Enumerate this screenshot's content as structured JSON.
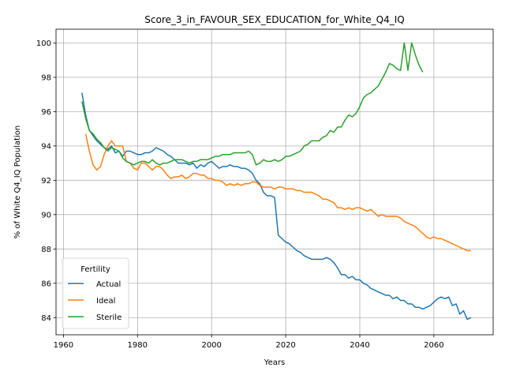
{
  "chart_data": {
    "type": "line",
    "title": "Score_3_in_FAVOUR_SEX_EDUCATION_for_White_Q4_IQ",
    "xlabel": "Years",
    "ylabel": "% of White Q4_IQ Population",
    "xlim": [
      1958,
      2076
    ],
    "ylim": [
      83.0,
      100.8
    ],
    "xticks": [
      1960,
      1980,
      2000,
      2020,
      2040,
      2060
    ],
    "yticks": [
      84,
      86,
      88,
      90,
      92,
      94,
      96,
      98,
      100
    ],
    "grid": true,
    "legend": {
      "title": "Fertility",
      "placement": "bottom-left"
    },
    "series": [
      {
        "name": "Actual",
        "color": "#1f77b4",
        "x": [
          1965,
          1966,
          1967,
          1968,
          1969,
          1970,
          1971,
          1972,
          1973,
          1974,
          1975,
          1976,
          1977,
          1978,
          1979,
          1980,
          1981,
          1982,
          1983,
          1984,
          1985,
          1986,
          1987,
          1988,
          1989,
          1990,
          1991,
          1992,
          1993,
          1994,
          1995,
          1996,
          1997,
          1998,
          1999,
          2000,
          2001,
          2002,
          2003,
          2004,
          2005,
          2006,
          2007,
          2008,
          2009,
          2010,
          2011,
          2012,
          2013,
          2014,
          2015,
          2016,
          2017,
          2018,
          2019,
          2020,
          2021,
          2022,
          2023,
          2024,
          2025,
          2026,
          2027,
          2028,
          2029,
          2030,
          2031,
          2032,
          2033,
          2034,
          2035,
          2036,
          2037,
          2038,
          2039,
          2040,
          2041,
          2042,
          2043,
          2044,
          2045,
          2046,
          2047,
          2048,
          2049,
          2050,
          2051,
          2052,
          2053,
          2054,
          2055,
          2056,
          2057,
          2058,
          2059,
          2060,
          2061,
          2062,
          2063,
          2064,
          2065,
          2066,
          2067,
          2068,
          2069,
          2070
        ],
        "values": [
          97.1,
          95.8,
          94.9,
          94.6,
          94.3,
          94.1,
          93.9,
          93.8,
          94.0,
          93.6,
          93.7,
          93.4,
          93.7,
          93.7,
          93.6,
          93.5,
          93.5,
          93.6,
          93.6,
          93.7,
          93.9,
          93.8,
          93.7,
          93.5,
          93.4,
          93.2,
          93.0,
          93.0,
          93.0,
          92.9,
          93.0,
          92.7,
          92.9,
          92.8,
          93.0,
          93.1,
          92.9,
          92.7,
          92.8,
          92.8,
          92.9,
          92.8,
          92.8,
          92.7,
          92.7,
          92.6,
          92.4,
          92.0,
          91.8,
          91.3,
          91.1,
          91.1,
          91.0,
          88.8,
          88.6,
          88.4,
          88.3,
          88.1,
          87.9,
          87.8,
          87.6,
          87.5,
          87.4,
          87.4,
          87.4,
          87.4,
          87.5,
          87.4,
          87.2,
          86.9,
          86.5,
          86.5,
          86.3,
          86.4,
          86.2,
          86.2,
          86.0,
          85.9,
          85.7,
          85.6,
          85.5,
          85.4,
          85.3,
          85.3,
          85.1,
          85.2,
          85.0,
          85.0,
          84.8,
          84.8,
          84.6,
          84.6,
          84.5,
          84.6,
          84.7,
          84.9,
          85.1,
          85.2,
          85.1,
          85.2,
          84.7,
          84.8,
          84.2,
          84.4,
          83.9,
          84.0
        ]
      },
      {
        "name": "Ideal",
        "color": "#ff7f0e",
        "x": [
          1966,
          1967,
          1968,
          1969,
          1970,
          1971,
          1972,
          1973,
          1974,
          1975,
          1976,
          1977,
          1978,
          1979,
          1980,
          1981,
          1982,
          1983,
          1984,
          1985,
          1986,
          1987,
          1988,
          1989,
          1990,
          1991,
          1992,
          1993,
          1994,
          1995,
          1996,
          1997,
          1998,
          1999,
          2000,
          2001,
          2002,
          2003,
          2004,
          2005,
          2006,
          2007,
          2008,
          2009,
          2010,
          2011,
          2012,
          2013,
          2014,
          2015,
          2016,
          2017,
          2018,
          2019,
          2020,
          2021,
          2022,
          2023,
          2024,
          2025,
          2026,
          2027,
          2028,
          2029,
          2030,
          2031,
          2032,
          2033,
          2034,
          2035,
          2036,
          2037,
          2038,
          2039,
          2040,
          2041,
          2042,
          2043,
          2044,
          2045,
          2046,
          2047,
          2048,
          2049,
          2050,
          2051,
          2052,
          2053,
          2054,
          2055,
          2056,
          2057,
          2058,
          2059,
          2060,
          2061,
          2062,
          2063,
          2064,
          2065,
          2066,
          2067,
          2068,
          2069,
          2070
        ],
        "values": [
          94.7,
          93.7,
          92.9,
          92.6,
          92.8,
          93.5,
          94.0,
          94.3,
          94.0,
          94.0,
          94.0,
          93.1,
          93.0,
          92.7,
          92.6,
          93.0,
          93.0,
          92.8,
          92.6,
          92.8,
          92.8,
          92.6,
          92.3,
          92.1,
          92.2,
          92.2,
          92.3,
          92.1,
          92.2,
          92.4,
          92.4,
          92.3,
          92.3,
          92.1,
          92.1,
          92.0,
          92.0,
          91.9,
          91.7,
          91.8,
          91.7,
          91.8,
          91.7,
          91.8,
          91.8,
          91.9,
          91.9,
          91.7,
          91.6,
          91.6,
          91.6,
          91.5,
          91.6,
          91.6,
          91.5,
          91.5,
          91.5,
          91.4,
          91.4,
          91.3,
          91.3,
          91.3,
          91.2,
          91.1,
          90.9,
          90.9,
          90.8,
          90.7,
          90.4,
          90.4,
          90.3,
          90.4,
          90.3,
          90.4,
          90.4,
          90.3,
          90.2,
          90.3,
          90.1,
          89.9,
          90.0,
          89.9,
          89.9,
          89.9,
          89.9,
          89.8,
          89.6,
          89.5,
          89.4,
          89.3,
          89.1,
          88.9,
          88.7,
          88.6,
          88.7,
          88.6,
          88.6,
          88.5,
          88.4,
          88.3,
          88.2,
          88.1,
          88.0,
          87.9,
          87.9
        ]
      },
      {
        "name": "Sterile",
        "color": "#2ca02c",
        "x": [
          1965,
          1966,
          1967,
          1968,
          1969,
          1970,
          1971,
          1972,
          1973,
          1974,
          1975,
          1976,
          1977,
          1978,
          1979,
          1980,
          1981,
          1982,
          1983,
          1984,
          1985,
          1986,
          1987,
          1988,
          1989,
          1990,
          1991,
          1992,
          1993,
          1994,
          1995,
          1996,
          1997,
          1998,
          1999,
          2000,
          2001,
          2002,
          2003,
          2004,
          2005,
          2006,
          2007,
          2008,
          2009,
          2010,
          2011,
          2012,
          2013,
          2014,
          2015,
          2016,
          2017,
          2018,
          2019,
          2020,
          2021,
          2022,
          2023,
          2024,
          2025,
          2026,
          2027,
          2028,
          2029,
          2030,
          2031,
          2032,
          2033,
          2034,
          2035,
          2036,
          2037,
          2038,
          2039,
          2040,
          2041,
          2042,
          2043,
          2044,
          2045,
          2046,
          2047,
          2048,
          2049,
          2050,
          2051,
          2052,
          2053,
          2054,
          2055,
          2056,
          2057
        ],
        "values": [
          96.6,
          95.6,
          94.9,
          94.7,
          94.4,
          94.2,
          93.9,
          93.7,
          93.9,
          93.8,
          93.7,
          93.3,
          93.1,
          93.0,
          92.9,
          93.0,
          93.1,
          93.1,
          93.0,
          93.2,
          93.0,
          92.9,
          93.0,
          93.0,
          93.1,
          93.2,
          93.2,
          93.2,
          93.1,
          93.0,
          93.1,
          93.1,
          93.2,
          93.2,
          93.2,
          93.3,
          93.4,
          93.4,
          93.5,
          93.5,
          93.5,
          93.6,
          93.6,
          93.6,
          93.6,
          93.7,
          93.5,
          92.9,
          93.0,
          93.2,
          93.1,
          93.1,
          93.2,
          93.1,
          93.2,
          93.4,
          93.4,
          93.5,
          93.6,
          93.7,
          94.0,
          94.1,
          94.3,
          94.3,
          94.3,
          94.5,
          94.6,
          94.9,
          94.8,
          95.1,
          95.1,
          95.5,
          95.8,
          95.7,
          95.9,
          96.3,
          96.8,
          97.0,
          97.1,
          97.3,
          97.5,
          97.9,
          98.3,
          98.8,
          98.7,
          98.5,
          98.4,
          100.0,
          98.4,
          100.0,
          99.3,
          98.7,
          98.3
        ]
      }
    ]
  }
}
